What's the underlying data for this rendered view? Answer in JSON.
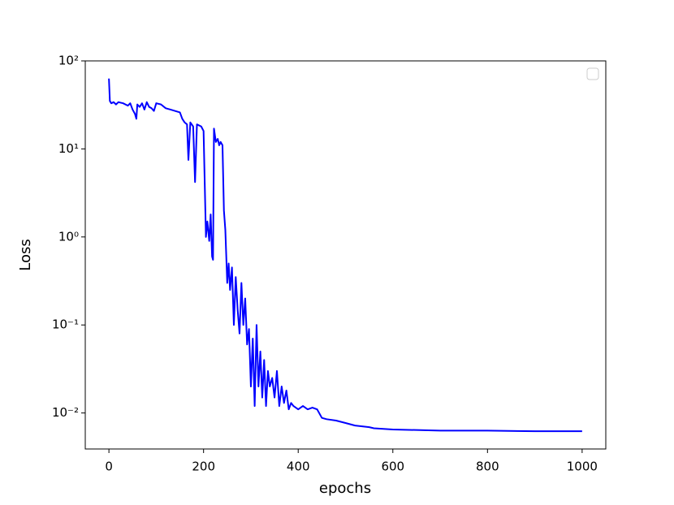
{
  "chart_data": {
    "type": "line",
    "xlabel": "epochs",
    "ylabel": "Loss",
    "yscale": "log",
    "legend": "upper right",
    "color": "#0000ff",
    "xlim": [
      -50,
      1050
    ],
    "xticks": [
      0,
      200,
      400,
      600,
      800,
      1000
    ],
    "ylim": [
      0.0039,
      100
    ],
    "yticks": [
      {
        "value": 0.01,
        "label": "10⁻²"
      },
      {
        "value": 0.1,
        "label": "10⁻¹"
      },
      {
        "value": 1,
        "label": "10⁰"
      },
      {
        "value": 10,
        "label": "10¹"
      },
      {
        "value": 100,
        "label": "10²"
      }
    ],
    "x": [
      0,
      2,
      5,
      10,
      15,
      20,
      30,
      40,
      45,
      50,
      55,
      58,
      60,
      65,
      70,
      75,
      80,
      85,
      90,
      95,
      100,
      110,
      120,
      130,
      140,
      150,
      155,
      160,
      165,
      168,
      172,
      178,
      182,
      186,
      195,
      200,
      205,
      208,
      212,
      215,
      218,
      220,
      222,
      226,
      230,
      233,
      236,
      240,
      243,
      246,
      250,
      253,
      256,
      260,
      264,
      268,
      272,
      276,
      280,
      284,
      288,
      292,
      296,
      300,
      304,
      308,
      312,
      316,
      320,
      324,
      328,
      332,
      336,
      340,
      345,
      350,
      355,
      360,
      365,
      370,
      375,
      380,
      385,
      390,
      400,
      410,
      420,
      430,
      440,
      450,
      460,
      480,
      500,
      520,
      550,
      560,
      600,
      650,
      700,
      800,
      900,
      1000
    ],
    "values": [
      63,
      35,
      33,
      34,
      32,
      34,
      33,
      31,
      33,
      28,
      25,
      22,
      32,
      30,
      33,
      28,
      34,
      30,
      29,
      27,
      33,
      32,
      29,
      28,
      27,
      26,
      22,
      20,
      19,
      7.5,
      20,
      18,
      4.2,
      19,
      18,
      16,
      1.0,
      1.5,
      0.9,
      1.8,
      0.6,
      0.55,
      17,
      12,
      13,
      11,
      12,
      11,
      2,
      1.2,
      0.3,
      0.5,
      0.25,
      0.45,
      0.1,
      0.35,
      0.15,
      0.08,
      0.3,
      0.1,
      0.2,
      0.06,
      0.09,
      0.02,
      0.07,
      0.012,
      0.1,
      0.02,
      0.05,
      0.015,
      0.04,
      0.012,
      0.03,
      0.02,
      0.025,
      0.015,
      0.03,
      0.012,
      0.02,
      0.013,
      0.018,
      0.011,
      0.013,
      0.012,
      0.011,
      0.012,
      0.011,
      0.0115,
      0.011,
      0.0088,
      0.0085,
      0.0082,
      0.0077,
      0.0072,
      0.0069,
      0.0067,
      0.0065,
      0.0064,
      0.0063,
      0.0063,
      0.0062,
      0.0062
    ]
  }
}
